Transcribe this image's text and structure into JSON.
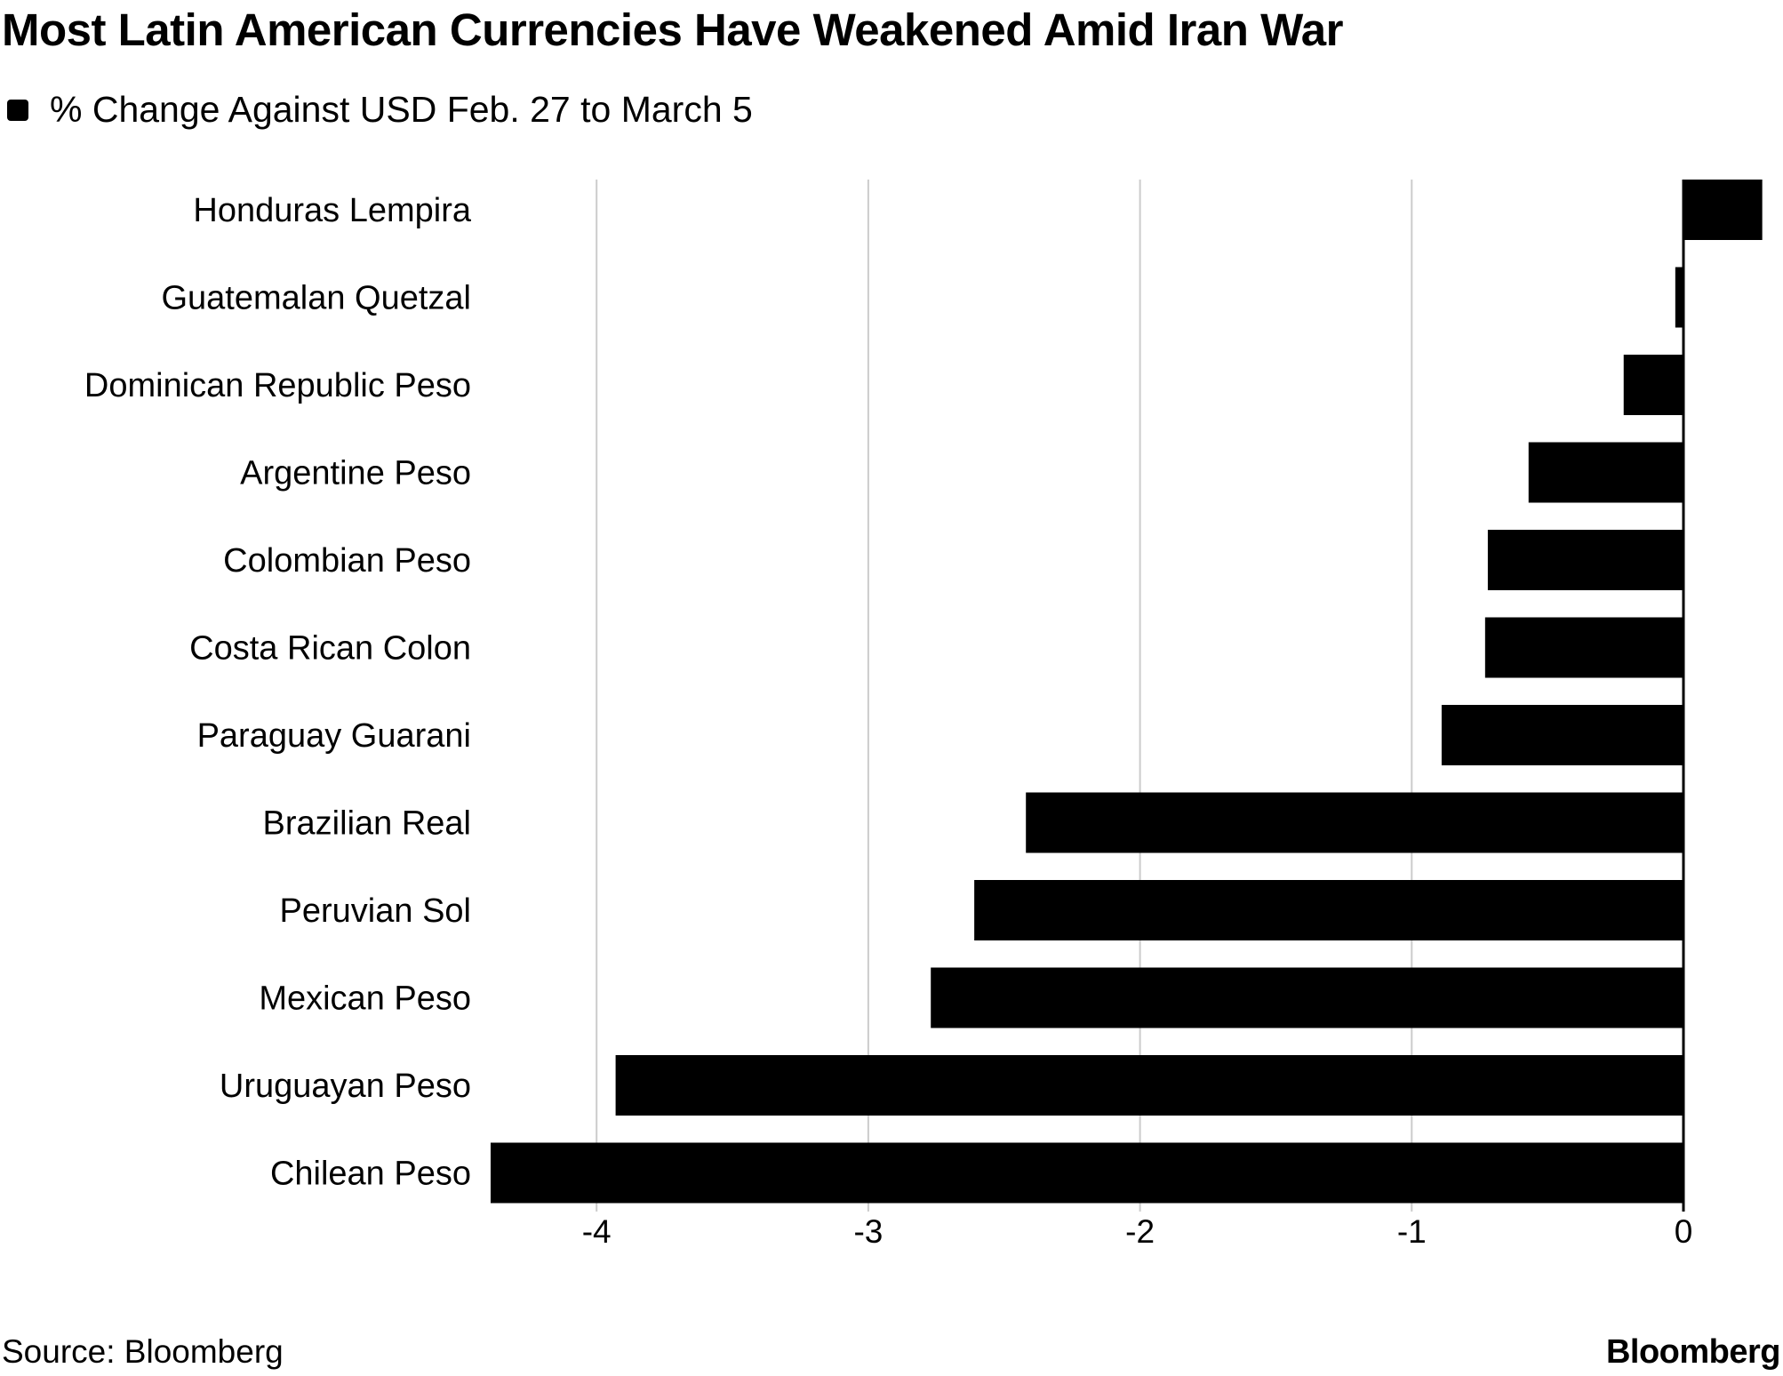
{
  "chart_data": {
    "type": "bar",
    "orientation": "horizontal",
    "title": "Most Latin American Currencies Have Weakened Amid Iran War",
    "legend": [
      {
        "name": "% Change Against USD Feb. 27 to March 5",
        "color": "#000000"
      }
    ],
    "legend_position": "top-left",
    "categories": [
      "Honduras Lempira",
      "Guatemalan Quetzal",
      "Dominican Republic Peso",
      "Argentine Peso",
      "Colombian Peso",
      "Costa Rican Colon",
      "Paraguay Guarani",
      "Brazilian Real",
      "Peruvian Sol",
      "Mexican Peso",
      "Uruguayan Peso",
      "Chilean Peso"
    ],
    "series": [
      {
        "name": "% Change Against USD Feb. 27 to March 5",
        "values": [
          0.29,
          -0.03,
          -0.22,
          -0.57,
          -0.72,
          -0.73,
          -0.89,
          -2.42,
          -2.61,
          -2.77,
          -3.93,
          -4.39
        ]
      }
    ],
    "xlim": [
      -4.4,
      0.3
    ],
    "xticks": [
      "-4",
      "-3",
      "-2",
      "-1",
      "0"
    ],
    "xtick_values": [
      -4,
      -3,
      -2,
      -1,
      0
    ],
    "grid": true,
    "bar_color": "#000000",
    "grid_color": "#cccccc"
  },
  "footer": {
    "source": "Source: Bloomberg",
    "logo": "Bloomberg"
  }
}
